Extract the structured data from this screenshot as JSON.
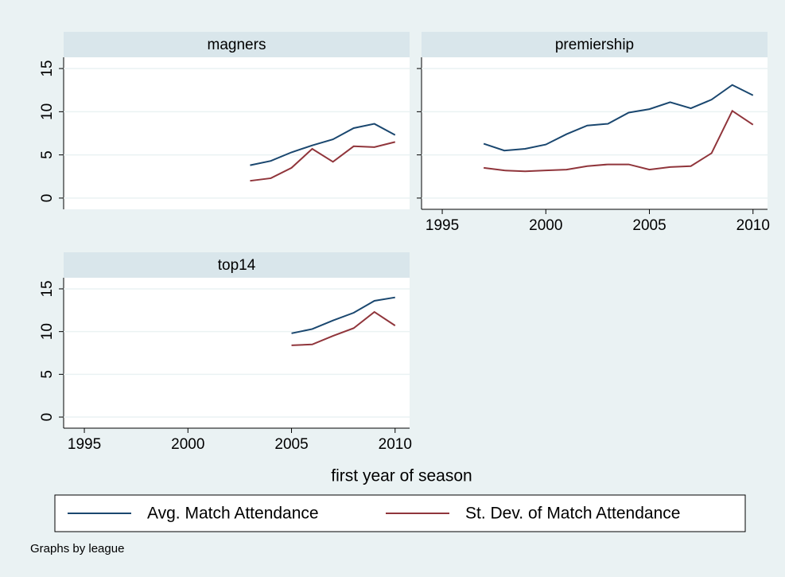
{
  "x_label": "first year of season",
  "note": "Graphs by league",
  "legend": [
    {
      "name": "Avg. Match Attendance",
      "color": "#1a476f"
    },
    {
      "name": "St. Dev. of Match Attendance",
      "color": "#90353b"
    }
  ],
  "chart_data": [
    {
      "type": "line",
      "title": "magners",
      "x": [
        2003,
        2004,
        2005,
        2006,
        2007,
        2008,
        2009,
        2010
      ],
      "series": [
        {
          "values": [
            3.8,
            4.3,
            5.3,
            6.1,
            6.8,
            8.1,
            8.6,
            7.3
          ]
        },
        {
          "values": [
            2.0,
            2.3,
            3.5,
            5.7,
            4.2,
            6.0,
            5.9,
            6.5
          ]
        }
      ],
      "xlim": [
        1994,
        2010.7
      ],
      "ylim": [
        -1.3,
        16.3
      ],
      "yticks": [
        0,
        5,
        10,
        15
      ],
      "grid": true
    },
    {
      "type": "line",
      "title": "premiership",
      "x": [
        1997,
        1998,
        1999,
        2000,
        2001,
        2002,
        2003,
        2004,
        2005,
        2006,
        2007,
        2008,
        2009,
        2010
      ],
      "series": [
        {
          "values": [
            6.3,
            5.5,
            5.7,
            6.2,
            7.4,
            8.4,
            8.6,
            9.9,
            10.3,
            11.1,
            10.4,
            11.4,
            13.1,
            11.9
          ]
        },
        {
          "values": [
            3.5,
            3.2,
            3.1,
            3.2,
            3.3,
            3.7,
            3.9,
            3.9,
            3.3,
            3.6,
            3.7,
            5.2,
            10.1,
            8.5
          ]
        }
      ],
      "xlim": [
        1994,
        2010.7
      ],
      "ylim": [
        -1.3,
        16.3
      ],
      "xticks": [
        1995,
        2000,
        2005,
        2010
      ],
      "yticks": [
        0,
        5,
        10,
        15
      ],
      "grid": true
    },
    {
      "type": "line",
      "title": "top14",
      "x": [
        2005,
        2006,
        2007,
        2008,
        2009,
        2010
      ],
      "series": [
        {
          "values": [
            9.8,
            10.3,
            11.3,
            12.2,
            13.6,
            14.0
          ]
        },
        {
          "values": [
            8.4,
            8.5,
            9.5,
            10.4,
            12.3,
            10.7
          ]
        }
      ],
      "xlim": [
        1994,
        2010.7
      ],
      "ylim": [
        -1.3,
        16.3
      ],
      "xticks": [
        1995,
        2000,
        2005,
        2010
      ],
      "yticks": [
        0,
        5,
        10,
        15
      ],
      "grid": true
    }
  ]
}
